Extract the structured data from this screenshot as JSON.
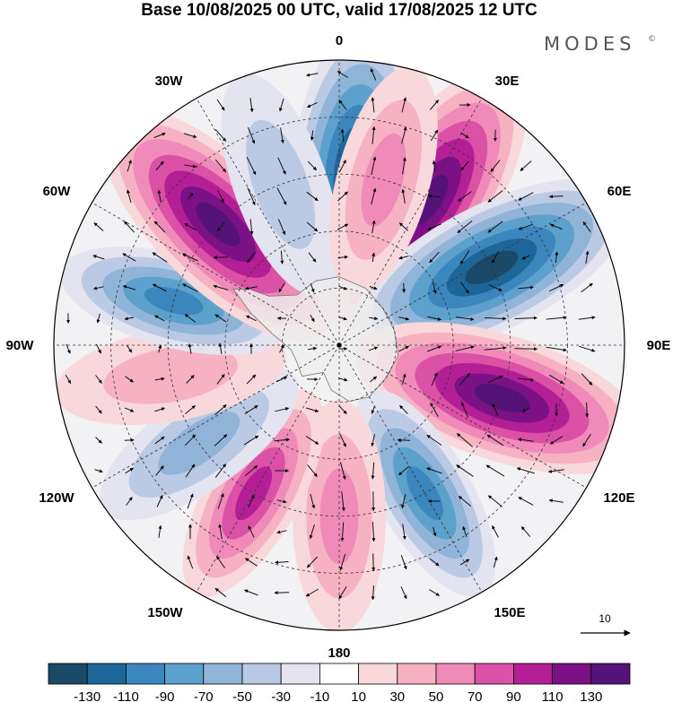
{
  "title": "Base 10/08/2025 00 UTC, valid 17/08/2025 12 UTC",
  "brand": {
    "name": "MODES",
    "mark": "©"
  },
  "map": {
    "projection": "south polar stereographic",
    "longitude_labels": {
      "top": "0",
      "top_left": "30W",
      "top_right": "30E",
      "upper_left": "60W",
      "upper_right": "60E",
      "left": "90W",
      "right": "90E",
      "lower_left": "120W",
      "lower_right": "120E",
      "bottom_left": "150W",
      "bottom_right": "150E",
      "bottom": "180"
    },
    "reference_vector": {
      "label": "10"
    },
    "anomaly_centers": [
      {
        "lon": 5,
        "value": -130
      },
      {
        "lon": 32,
        "value": 125
      },
      {
        "lon": 63,
        "value": -130
      },
      {
        "lon": 108,
        "value": 125
      },
      {
        "lon": 150,
        "value": -95
      },
      {
        "lon": 180,
        "value": 55
      },
      {
        "lon": -150,
        "value": 80
      },
      {
        "lon": -125,
        "value": -55
      },
      {
        "lon": -100,
        "value": 35
      },
      {
        "lon": -75,
        "value": -85
      },
      {
        "lon": -45,
        "value": 125
      },
      {
        "lon": -20,
        "value": -35
      },
      {
        "lon": 15,
        "value": 45
      }
    ]
  },
  "colorbar": {
    "tick_labels": [
      "-130",
      "-110",
      "-90",
      "-70",
      "-50",
      "-30",
      "-10",
      "10",
      "30",
      "50",
      "70",
      "90",
      "110",
      "130"
    ],
    "colors": [
      "#1a4a68",
      "#1d6699",
      "#3b86bd",
      "#5ca0cc",
      "#90b4d8",
      "#bac9e4",
      "#e4e3f0",
      "#ffffff",
      "#f9d8dc",
      "#f6b1c3",
      "#f08bb9",
      "#db51a5",
      "#b51f95",
      "#7c1186",
      "#55137a"
    ]
  }
}
